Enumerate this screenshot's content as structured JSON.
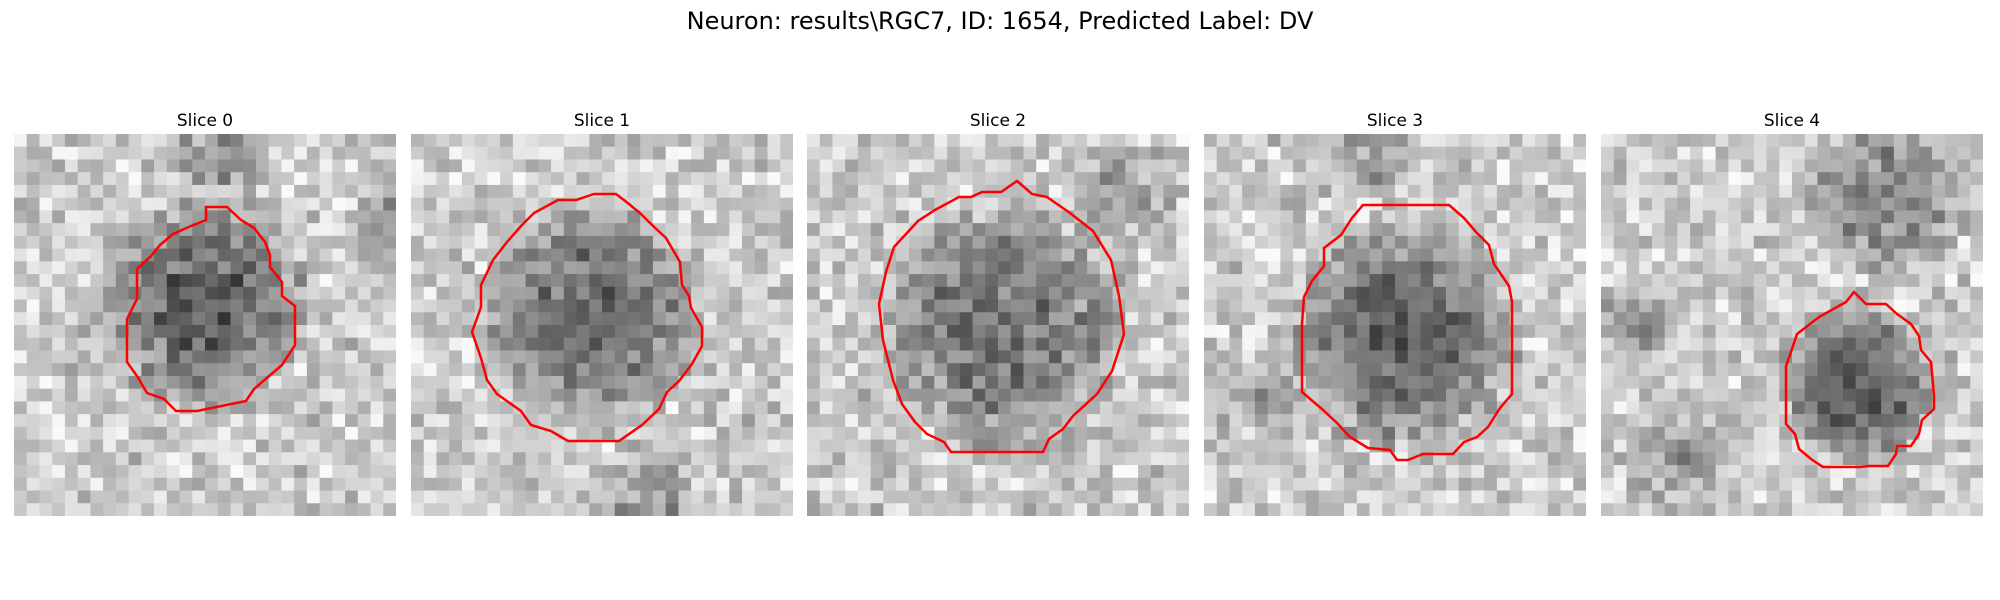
{
  "figure": {
    "title": "Neuron: results\\RGC7, ID: 1654, Predicted Label: DV"
  },
  "colors": {
    "contour": "#ff0000"
  },
  "slices": [
    {
      "label": "Slice 0"
    },
    {
      "label": "Slice 1"
    },
    {
      "label": "Slice 2"
    },
    {
      "label": "Slice 3"
    },
    {
      "label": "Slice 4"
    }
  ]
}
